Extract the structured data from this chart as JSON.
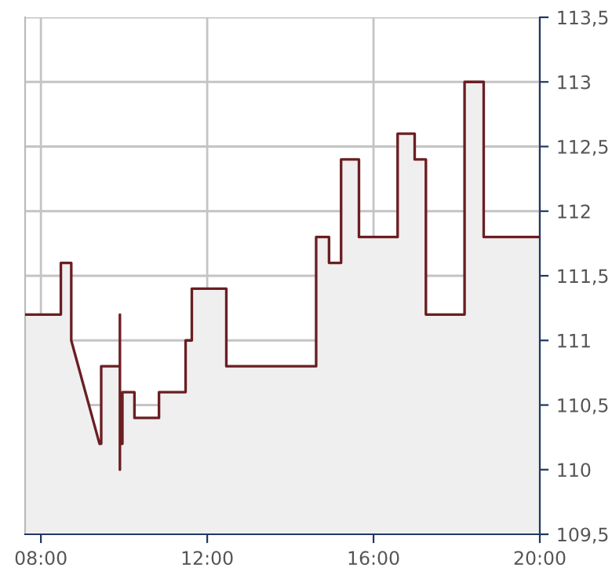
{
  "chart_data": {
    "type": "area",
    "x": [
      7.62,
      8.48,
      8.48,
      8.73,
      8.73,
      9.41,
      9.45,
      9.45,
      9.9,
      9.9,
      9.9,
      9.9,
      9.96,
      9.96,
      10.25,
      10.25,
      10.84,
      10.84,
      11.48,
      11.48,
      11.63,
      11.63,
      12.46,
      12.46,
      14.62,
      14.62,
      14.93,
      14.93,
      15.22,
      15.22,
      15.65,
      15.65,
      16.58,
      16.58,
      16.99,
      16.99,
      17.26,
      17.26,
      18.19,
      18.19,
      18.65,
      18.65,
      20.0
    ],
    "series": [
      {
        "color": "#6b1e22",
        "values": [
          111.2,
          111.2,
          111.6,
          111.6,
          111.0,
          110.2,
          110.2,
          110.8,
          110.8,
          111.2,
          110.0,
          110.2,
          110.2,
          110.6,
          110.6,
          110.4,
          110.4,
          110.6,
          110.6,
          111.0,
          111.0,
          111.4,
          111.4,
          110.8,
          110.8,
          111.8,
          111.8,
          111.6,
          111.6,
          112.4,
          112.4,
          111.8,
          111.8,
          112.6,
          112.6,
          112.4,
          112.4,
          111.2,
          111.2,
          113.0,
          113.0,
          111.8,
          111.8
        ]
      }
    ],
    "xlim": [
      7.62,
      20
    ],
    "xticks": [
      {
        "value": 8,
        "label": "08:00"
      },
      {
        "value": 12,
        "label": "12:00"
      },
      {
        "value": 16,
        "label": "16:00"
      },
      {
        "value": 20,
        "label": "20:00"
      }
    ],
    "ylim": [
      109.5,
      113.5
    ],
    "yticks": [
      {
        "value": 109.5,
        "label": "109,5"
      },
      {
        "value": 110,
        "label": "110"
      },
      {
        "value": 110.5,
        "label": "110,5"
      },
      {
        "value": 111,
        "label": "111"
      },
      {
        "value": 111.5,
        "label": "111,5"
      },
      {
        "value": 112,
        "label": "112"
      },
      {
        "value": 112.5,
        "label": "112,5"
      },
      {
        "value": 113,
        "label": "113"
      },
      {
        "value": 113.5,
        "label": "113,5"
      }
    ],
    "grid": true
  }
}
